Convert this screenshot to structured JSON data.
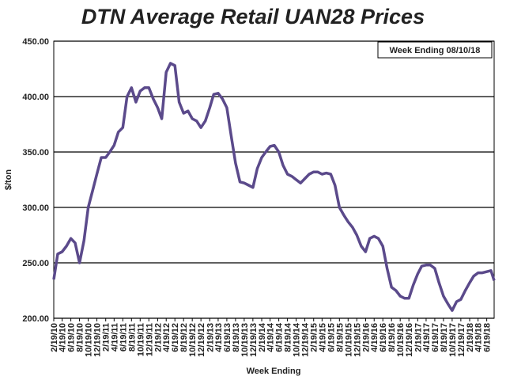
{
  "chart_data": {
    "type": "line",
    "title": "DTN Average Retail UAN28 Prices",
    "y_label": "$/ton",
    "x_label": "Week Ending",
    "note": "Week Ending 08/10/18",
    "x": [
      "2/19/10",
      "3/19/10",
      "4/19/10",
      "5/19/10",
      "6/19/10",
      "7/19/10",
      "8/19/10",
      "9/19/10",
      "10/19/10",
      "11/19/10",
      "12/19/10",
      "1/19/11",
      "2/19/11",
      "3/19/11",
      "4/19/11",
      "5/19/11",
      "6/19/11",
      "7/19/11",
      "8/19/11",
      "9/19/11",
      "10/19/11",
      "11/19/11",
      "12/19/11",
      "1/19/12",
      "2/19/12",
      "3/19/12",
      "4/19/12",
      "5/19/12",
      "6/19/12",
      "7/19/12",
      "8/19/12",
      "9/19/12",
      "10/19/12",
      "11/19/12",
      "12/19/12",
      "1/19/13",
      "2/19/13",
      "3/19/13",
      "4/19/13",
      "5/19/13",
      "6/19/13",
      "7/19/13",
      "8/19/13",
      "9/19/13",
      "10/19/13",
      "11/19/13",
      "12/19/13",
      "1/19/14",
      "2/19/14",
      "3/19/14",
      "4/19/14",
      "5/19/14",
      "6/19/14",
      "7/19/14",
      "8/19/14",
      "9/19/14",
      "10/19/14",
      "11/19/14",
      "12/19/14",
      "1/19/15",
      "2/19/15",
      "3/19/15",
      "4/19/15",
      "5/19/15",
      "6/19/15",
      "7/19/15",
      "8/19/15",
      "9/19/15",
      "10/19/15",
      "11/19/15",
      "12/19/15",
      "1/19/16",
      "2/19/16",
      "3/19/16",
      "4/19/16",
      "5/19/16",
      "6/19/16",
      "7/19/16",
      "8/19/16",
      "9/19/16",
      "10/19/16",
      "11/19/16",
      "12/19/16",
      "1/19/17",
      "2/19/17",
      "3/19/17",
      "4/19/17",
      "5/19/17",
      "6/19/17",
      "7/19/17",
      "8/19/17",
      "9/19/17",
      "10/19/17",
      "11/19/17",
      "12/19/17",
      "1/19/18",
      "2/19/18",
      "3/19/18",
      "4/19/18",
      "5/19/18",
      "6/19/18",
      "7/19/18",
      "8/10/18"
    ],
    "series": [
      {
        "name": "UAN28",
        "color": "#5b4a8b",
        "values": [
          235,
          258,
          260,
          265,
          272,
          268,
          250,
          270,
          300,
          315,
          330,
          345,
          345,
          350,
          356,
          368,
          372,
          400,
          408,
          395,
          405,
          408,
          408,
          398,
          390,
          380,
          422,
          430,
          428,
          395,
          385,
          387,
          380,
          378,
          372,
          378,
          390,
          402,
          403,
          398,
          390,
          365,
          340,
          323,
          322,
          320,
          318,
          335,
          345,
          350,
          355,
          356,
          350,
          338,
          330,
          328,
          325,
          322,
          326,
          330,
          332,
          332,
          330,
          331,
          330,
          320,
          300,
          293,
          287,
          282,
          275,
          265,
          260,
          272,
          274,
          272,
          265,
          245,
          228,
          225,
          220,
          218,
          218,
          230,
          240,
          247,
          248,
          248,
          245,
          232,
          220,
          213,
          207,
          215,
          217,
          225,
          232,
          238,
          241,
          241,
          242,
          243,
          234
        ]
      }
    ],
    "xlim": [
      "2/19/10",
      "8/10/18"
    ],
    "xticks": [
      "2/19/10",
      "4/19/10",
      "6/19/10",
      "8/19/10",
      "10/19/10",
      "12/19/10",
      "2/19/11",
      "4/19/11",
      "6/19/11",
      "8/19/11",
      "10/19/11",
      "12/19/11",
      "2/19/12",
      "4/19/12",
      "6/19/12",
      "8/19/12",
      "10/19/12",
      "12/19/12",
      "2/19/13",
      "4/19/13",
      "6/19/13",
      "8/19/13",
      "10/19/13",
      "12/19/13",
      "2/19/14",
      "4/19/14",
      "6/19/14",
      "8/19/14",
      "10/19/14",
      "12/19/14",
      "2/19/15",
      "4/19/15",
      "6/19/15",
      "8/19/15",
      "10/19/15",
      "12/19/15",
      "2/19/16",
      "4/19/16",
      "6/19/16",
      "8/19/16",
      "10/19/16",
      "12/19/16",
      "2/19/17",
      "4/19/17",
      "6/19/17",
      "8/19/17",
      "10/19/17",
      "12/19/17",
      "2/19/18",
      "4/19/18",
      "6/19/18"
    ],
    "ylim": [
      200,
      450
    ],
    "yticks": [
      {
        "value": 200,
        "label": "200.00"
      },
      {
        "value": 250,
        "label": "250.00"
      },
      {
        "value": 300,
        "label": "300.00"
      },
      {
        "value": 350,
        "label": "350.00"
      },
      {
        "value": 400,
        "label": "400.00"
      },
      {
        "value": 450,
        "label": "450.00"
      }
    ],
    "grid": true
  }
}
